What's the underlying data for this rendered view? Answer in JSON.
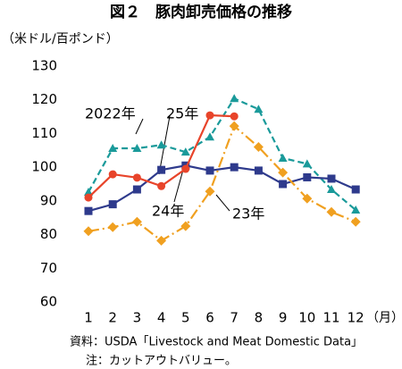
{
  "chart_data": {
    "type": "line",
    "title": "図２　豚肉卸売価格の推移",
    "y_label": "（米ドル/百ポンド）",
    "x_label": "（月）",
    "source": [
      "資料：USDA「Livestock and Meat Domestic Data」",
      "注：カットアウトバリュー。"
    ],
    "categories": [
      "1",
      "2",
      "3",
      "4",
      "5",
      "6",
      "7",
      "8",
      "9",
      "10",
      "11",
      "12"
    ],
    "ylim": [
      60,
      130
    ],
    "yticks": [
      60,
      70,
      80,
      90,
      100,
      110,
      120,
      130
    ],
    "grid": false,
    "annotations": [
      "2022年",
      "25年",
      "24年",
      "23年"
    ],
    "series": [
      {
        "name": "2022年",
        "color": "#1a9a9a",
        "dash": "7,4",
        "marker": "triangle",
        "values": [
          92.6,
          105.6,
          105.6,
          106.6,
          104.5,
          109,
          120.4,
          117.2,
          102.7,
          101,
          93.4,
          87.3
        ]
      },
      {
        "name": "23年",
        "color": "#2e3a8c",
        "dash": "",
        "marker": "square",
        "values": [
          87,
          89,
          93.4,
          99.2,
          100.5,
          99,
          100,
          99,
          95,
          97,
          96.6,
          93.4
        ]
      },
      {
        "name": "24年",
        "color": "#f0a020",
        "dash": "12,4,2,4",
        "marker": "diamond",
        "values": [
          81,
          82.2,
          83.8,
          78.2,
          82.5,
          92.8,
          112.2,
          106,
          98.4,
          90.7,
          86.7,
          83.8
        ]
      },
      {
        "name": "25年",
        "color": "#e8442a",
        "dash": "",
        "marker": "circle",
        "values": [
          91,
          97.9,
          96.9,
          94.4,
          99.5,
          115.4,
          115.1,
          null,
          null,
          null,
          null,
          null
        ]
      }
    ]
  }
}
